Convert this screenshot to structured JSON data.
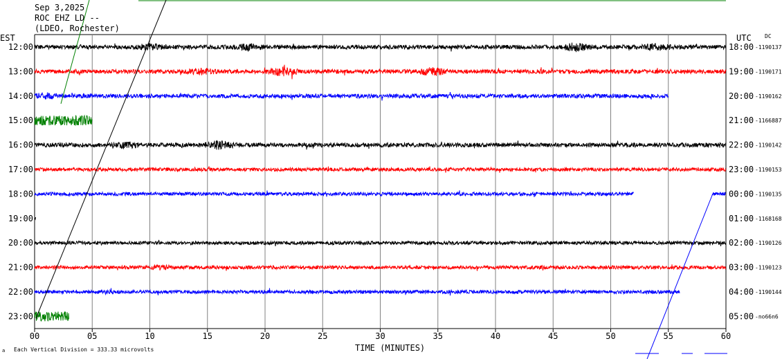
{
  "header": {
    "date": "Sep 3,2025",
    "station": "ROC EHZ LD --",
    "network": "(LDEO, Rochester)"
  },
  "axes": {
    "left_zone": "EST",
    "right_zone": "UTC",
    "dc_label": "DC",
    "xlabel": "TIME (MINUTES)",
    "scale_note": "Each Vertical Division =  333.33 microvolts",
    "corner_mark": "a"
  },
  "colors": {
    "black": "#000000",
    "red": "#ff0000",
    "blue": "#0000ff",
    "green": "#008000",
    "grid": "#808080"
  },
  "chart_data": {
    "type": "line",
    "title": "Sep 3,2025",
    "xlabel": "TIME (MINUTES)",
    "xlim": [
      0,
      60
    ],
    "x_ticks": [
      "00",
      "05",
      "10",
      "15",
      "20",
      "25",
      "30",
      "35",
      "40",
      "45",
      "50",
      "55",
      "60"
    ],
    "grid": true,
    "rows": [
      {
        "est": "12:00",
        "utc": "18:00",
        "dc": "-1190137",
        "color": "black",
        "start": 0,
        "end": 60,
        "amp": 3,
        "bursts": [
          [
            10,
            2
          ],
          [
            18.5,
            2
          ],
          [
            47,
            2.5
          ],
          [
            54,
            2
          ]
        ]
      },
      {
        "est": "13:00",
        "utc": "19:00",
        "dc": "-1190171",
        "color": "red",
        "start": 0,
        "end": 60,
        "amp": 3,
        "bursts": [
          [
            14.5,
            2
          ],
          [
            21.5,
            2.5
          ],
          [
            34.5,
            2.5
          ]
        ]
      },
      {
        "est": "14:00",
        "utc": "20:00",
        "dc": "-1190162",
        "color": "blue",
        "start": 0,
        "end": 55,
        "amp": 3,
        "bursts": [
          [
            1,
            1.8
          ]
        ]
      },
      {
        "est": "15:00",
        "utc": "21:00",
        "dc": "-1166887",
        "color": "green",
        "start": 0,
        "end": 5,
        "amp": 7,
        "bursts": []
      },
      {
        "est": "16:00",
        "utc": "22:00",
        "dc": "-1190142",
        "color": "black",
        "start": 0,
        "end": 60,
        "amp": 3,
        "bursts": [
          [
            8,
            2
          ],
          [
            16,
            2.5
          ]
        ]
      },
      {
        "est": "17:00",
        "utc": "23:00",
        "dc": "-1190153",
        "color": "red",
        "start": 0,
        "end": 60,
        "amp": 2.5,
        "bursts": []
      },
      {
        "est": "18:00",
        "utc": "00:00",
        "dc": "-1190135",
        "color": "blue",
        "start": 0,
        "end": 52,
        "amp": 2.5,
        "bursts": [],
        "segments": [
          [
            58.8,
            60
          ]
        ]
      },
      {
        "est": "19:00",
        "utc": "01:00",
        "dc": "-1168168",
        "color": "black",
        "start": 0,
        "end": 0.1,
        "amp": 2,
        "bursts": []
      },
      {
        "est": "20:00",
        "utc": "02:00",
        "dc": "-1190126",
        "color": "black",
        "start": 0,
        "end": 60,
        "amp": 2.5,
        "bursts": []
      },
      {
        "est": "21:00",
        "utc": "03:00",
        "dc": "-1190123",
        "color": "red",
        "start": 0,
        "end": 60,
        "amp": 2.5,
        "bursts": [
          [
            11,
            1.8
          ]
        ]
      },
      {
        "est": "22:00",
        "utc": "04:00",
        "dc": "-1190144",
        "color": "blue",
        "start": 0,
        "end": 56,
        "amp": 2.5,
        "bursts": []
      },
      {
        "est": "23:00",
        "utc": "05:00",
        "dc": "-no66n6",
        "color": "green",
        "start": 0,
        "end": 3,
        "amp": 7,
        "bursts": []
      }
    ]
  }
}
